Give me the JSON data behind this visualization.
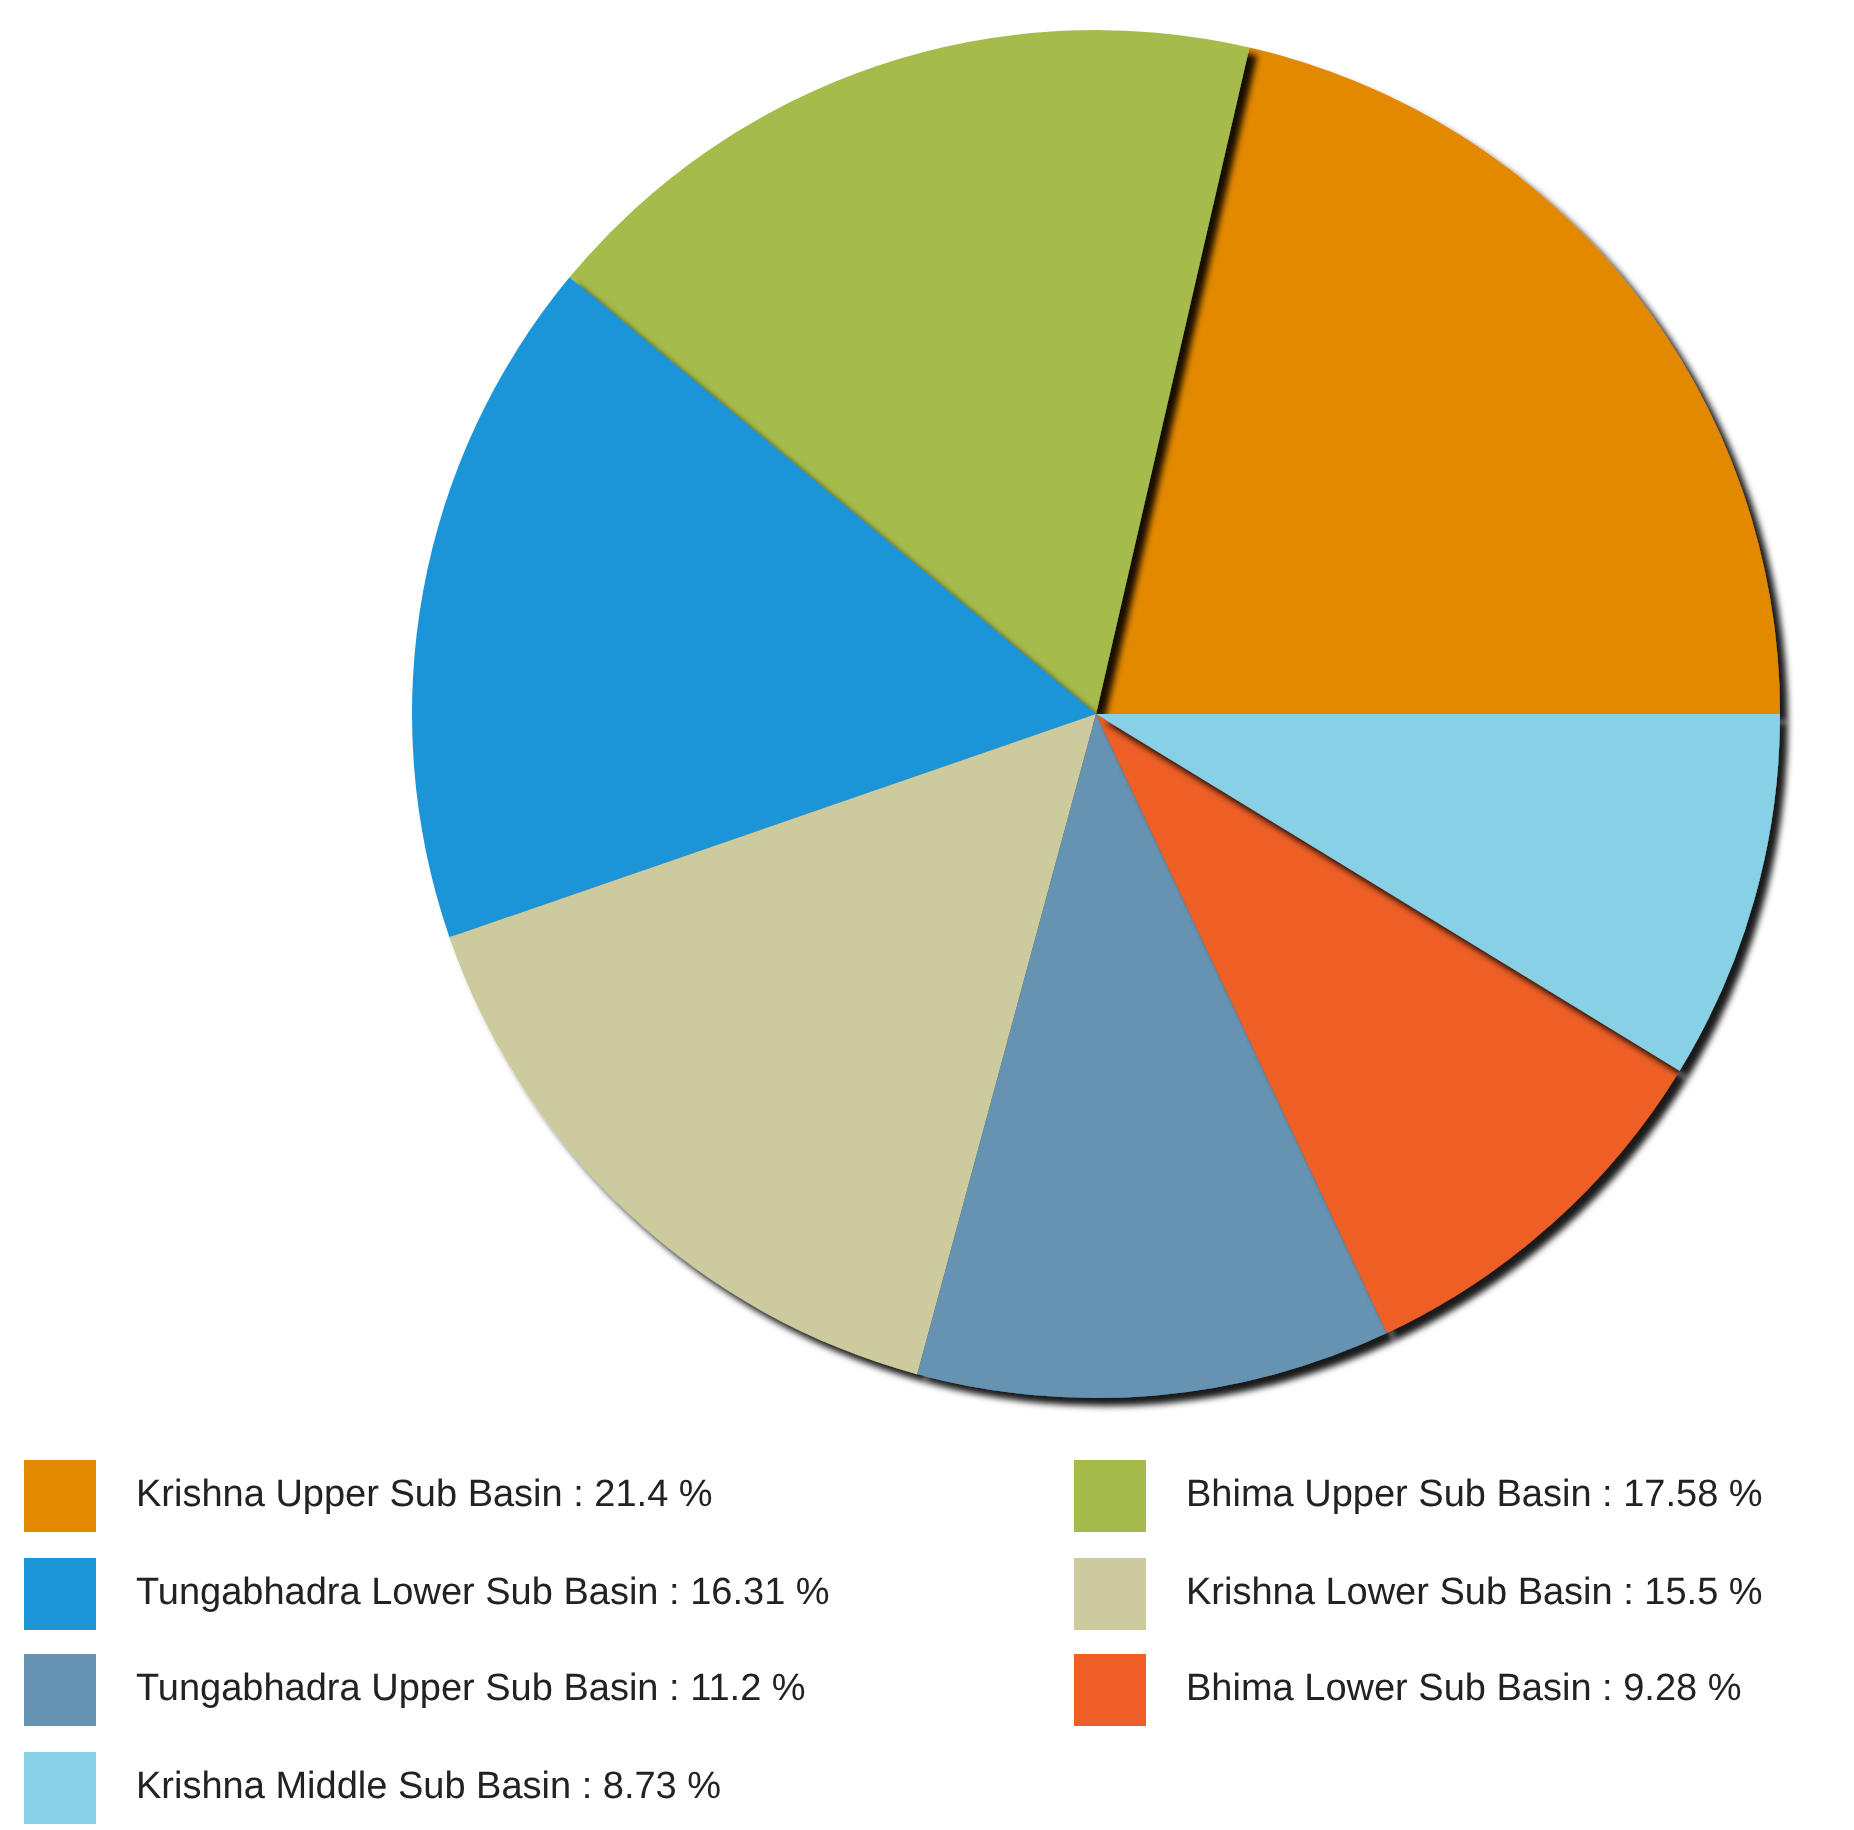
{
  "chart_data": {
    "type": "pie",
    "categories": [
      "Krishna Upper Sub Basin",
      "Bhima Upper Sub Basin",
      "Tungabhadra Lower Sub Basin",
      "Krishna Lower Sub Basin",
      "Tungabhadra Upper Sub Basin",
      "Bhima Lower Sub Basin",
      "Krishna Middle Sub Basin"
    ],
    "values": [
      21.4,
      17.58,
      16.31,
      15.5,
      11.2,
      9.28,
      8.73
    ],
    "value_labels": [
      ": 21.4 %",
      ": 17.58 %",
      ": 16.31 %",
      ": 15.5 %",
      ": 11.2 %",
      ": 9.28 %",
      ": 8.73 %"
    ],
    "colors": [
      "#e38900",
      "#a5bb4c",
      "#1c95d8",
      "#cbcb9e",
      "#6693b2",
      "#ee5e27",
      "#87d0e6"
    ],
    "legend": "bottom"
  }
}
